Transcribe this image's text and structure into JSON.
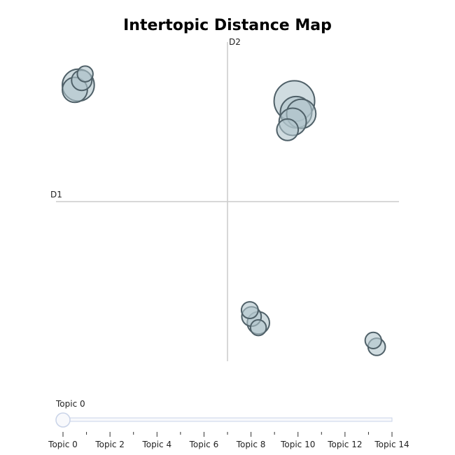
{
  "chart_data": {
    "type": "scatter",
    "title": "Intertopic Distance Map",
    "xlabel": "D1",
    "ylabel": "D2",
    "xlim": [
      -10,
      10
    ],
    "ylim": [
      -10,
      10
    ],
    "bubble_fill": "#b0c4cc",
    "bubble_stroke": "#4f6068",
    "axis_color": "#cccccc",
    "points": [
      {
        "topic": 0,
        "x": 3.9,
        "y": 6.3,
        "size": 1.0
      },
      {
        "topic": 1,
        "x": -8.7,
        "y": 7.3,
        "size": 0.62
      },
      {
        "topic": 2,
        "x": 4.0,
        "y": 5.6,
        "size": 0.6
      },
      {
        "topic": 3,
        "x": 4.3,
        "y": 5.5,
        "size": 0.52
      },
      {
        "topic": 4,
        "x": 3.8,
        "y": 5.0,
        "size": 0.45
      },
      {
        "topic": 5,
        "x": -8.9,
        "y": 7.0,
        "size": 0.38
      },
      {
        "topic": 6,
        "x": 1.8,
        "y": -7.6,
        "size": 0.3
      },
      {
        "topic": 7,
        "x": 3.5,
        "y": 4.5,
        "size": 0.28
      },
      {
        "topic": 8,
        "x": -8.5,
        "y": 7.6,
        "size": 0.25
      },
      {
        "topic": 9,
        "x": 1.4,
        "y": -7.2,
        "size": 0.23
      },
      {
        "topic": 10,
        "x": 8.7,
        "y": -9.1,
        "size": 0.18
      },
      {
        "topic": 11,
        "x": 1.3,
        "y": -6.8,
        "size": 0.17
      },
      {
        "topic": 12,
        "x": 8.5,
        "y": -8.7,
        "size": 0.16
      },
      {
        "topic": 13,
        "x": -8.3,
        "y": 8.0,
        "size": 0.15
      },
      {
        "topic": 14,
        "x": 1.8,
        "y": -7.9,
        "size": 0.15
      }
    ],
    "slider": {
      "current_label": "Topic 0",
      "tick_labels": [
        "Topic 0",
        "Topic 2",
        "Topic 4",
        "Topic 6",
        "Topic 8",
        "Topic 10",
        "Topic 12",
        "Topic 14"
      ],
      "track_color": "#c9d3e8"
    }
  }
}
